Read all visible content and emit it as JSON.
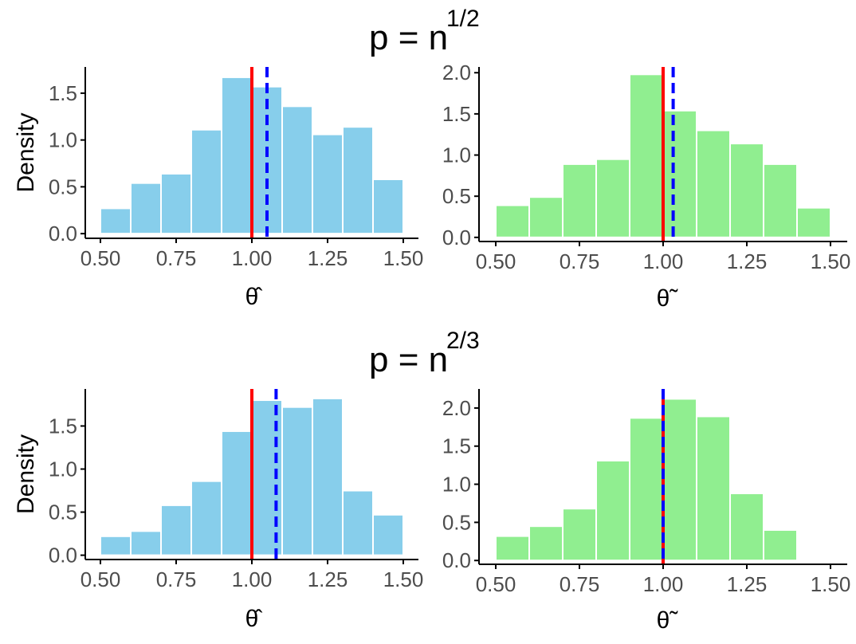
{
  "figure": {
    "rows": [
      {
        "title_base": "p = n",
        "title_exp": "1/2"
      },
      {
        "title_base": "p = n",
        "title_exp": "2/3"
      }
    ]
  },
  "colors": {
    "hat_fill": "#87CEEB",
    "tilde_fill": "#90EE90",
    "bar_edge": "#ffffff",
    "true_line": "#ff0000",
    "mean_line": "#0000ff",
    "axis": "#000000",
    "tick_text": "#4d4d4d"
  },
  "chart_data": [
    {
      "type": "bar",
      "panel": "row1-left",
      "title": "p = n^(1/2)",
      "xlabel": "θ̂",
      "ylabel": "Density",
      "color_key": "hat_fill",
      "bin_width": 0.1,
      "bin_starts": [
        0.5,
        0.6,
        0.7,
        0.8,
        0.9,
        1.0,
        1.1,
        1.2,
        1.3,
        1.4
      ],
      "values": [
        0.27,
        0.54,
        0.64,
        1.11,
        1.67,
        1.57,
        1.36,
        1.06,
        1.14,
        0.58
      ],
      "xlim": [
        0.45,
        1.55
      ],
      "ylim": [
        -0.05,
        1.78
      ],
      "xticks": [
        0.5,
        0.75,
        1.0,
        1.25,
        1.5
      ],
      "xtick_labels": [
        "0.50",
        "0.75",
        "1.00",
        "1.25",
        "1.50"
      ],
      "yticks": [
        0.0,
        0.5,
        1.0,
        1.5
      ],
      "ytick_labels": [
        "0.0",
        "0.5",
        "1.0",
        "1.5"
      ],
      "vlines": [
        {
          "name": "true-value-line",
          "x": 1.0,
          "style": "solid",
          "color_key": "true_line"
        },
        {
          "name": "mean-estimate-line",
          "x": 1.05,
          "style": "dashed",
          "color_key": "mean_line"
        }
      ]
    },
    {
      "type": "bar",
      "panel": "row1-right",
      "title": "p = n^(1/2)",
      "xlabel": "θ̃",
      "ylabel": "",
      "color_key": "tilde_fill",
      "bin_width": 0.1,
      "bin_starts": [
        0.5,
        0.6,
        0.7,
        0.8,
        0.9,
        1.0,
        1.1,
        1.2,
        1.3,
        1.4
      ],
      "values": [
        0.39,
        0.49,
        0.89,
        0.95,
        1.98,
        1.54,
        1.3,
        1.14,
        0.89,
        0.36
      ],
      "xlim": [
        0.45,
        1.55
      ],
      "ylim": [
        -0.05,
        2.07
      ],
      "xticks": [
        0.5,
        0.75,
        1.0,
        1.25,
        1.5
      ],
      "xtick_labels": [
        "0.50",
        "0.75",
        "1.00",
        "1.25",
        "1.50"
      ],
      "yticks": [
        0.0,
        0.5,
        1.0,
        1.5,
        2.0
      ],
      "ytick_labels": [
        "0.0",
        "0.5",
        "1.0",
        "1.5",
        "2.0"
      ],
      "vlines": [
        {
          "name": "true-value-line",
          "x": 1.0,
          "style": "solid",
          "color_key": "true_line"
        },
        {
          "name": "mean-estimate-line",
          "x": 1.03,
          "style": "dashed",
          "color_key": "mean_line"
        }
      ]
    },
    {
      "type": "bar",
      "panel": "row2-left",
      "title": "p = n^(2/3)",
      "xlabel": "θ̂",
      "ylabel": "Density",
      "color_key": "hat_fill",
      "bin_width": 0.1,
      "bin_starts": [
        0.5,
        0.6,
        0.7,
        0.8,
        0.9,
        1.0,
        1.1,
        1.2,
        1.3,
        1.4
      ],
      "values": [
        0.22,
        0.28,
        0.58,
        0.86,
        1.44,
        1.8,
        1.72,
        1.82,
        0.75,
        0.47
      ],
      "xlim": [
        0.45,
        1.55
      ],
      "ylim": [
        -0.05,
        1.93
      ],
      "xticks": [
        0.5,
        0.75,
        1.0,
        1.25,
        1.5
      ],
      "xtick_labels": [
        "0.50",
        "0.75",
        "1.00",
        "1.25",
        "1.50"
      ],
      "yticks": [
        0.0,
        0.5,
        1.0,
        1.5
      ],
      "ytick_labels": [
        "0.0",
        "0.5",
        "1.0",
        "1.5"
      ],
      "vlines": [
        {
          "name": "true-value-line",
          "x": 1.0,
          "style": "solid",
          "color_key": "true_line"
        },
        {
          "name": "mean-estimate-line",
          "x": 1.08,
          "style": "dashed",
          "color_key": "mean_line"
        }
      ]
    },
    {
      "type": "bar",
      "panel": "row2-right",
      "title": "p = n^(2/3)",
      "xlabel": "θ̃",
      "ylabel": "",
      "color_key": "tilde_fill",
      "bin_width": 0.1,
      "bin_starts": [
        0.5,
        0.6,
        0.7,
        0.8,
        0.9,
        1.0,
        1.1,
        1.2,
        1.3
      ],
      "values": [
        0.32,
        0.45,
        0.68,
        1.31,
        1.87,
        2.12,
        1.89,
        0.88,
        0.4
      ],
      "xlim": [
        0.45,
        1.55
      ],
      "ylim": [
        -0.05,
        2.25
      ],
      "xticks": [
        0.5,
        0.75,
        1.0,
        1.25,
        1.5
      ],
      "xtick_labels": [
        "0.50",
        "0.75",
        "1.00",
        "1.25",
        "1.50"
      ],
      "yticks": [
        0.0,
        0.5,
        1.0,
        1.5,
        2.0
      ],
      "ytick_labels": [
        "0.0",
        "0.5",
        "1.0",
        "1.5",
        "2.0"
      ],
      "vlines": [
        {
          "name": "true-value-line",
          "x": 1.0,
          "style": "solid",
          "color_key": "true_line"
        },
        {
          "name": "mean-estimate-line",
          "x": 1.0,
          "style": "dashed",
          "color_key": "mean_line"
        }
      ]
    }
  ]
}
